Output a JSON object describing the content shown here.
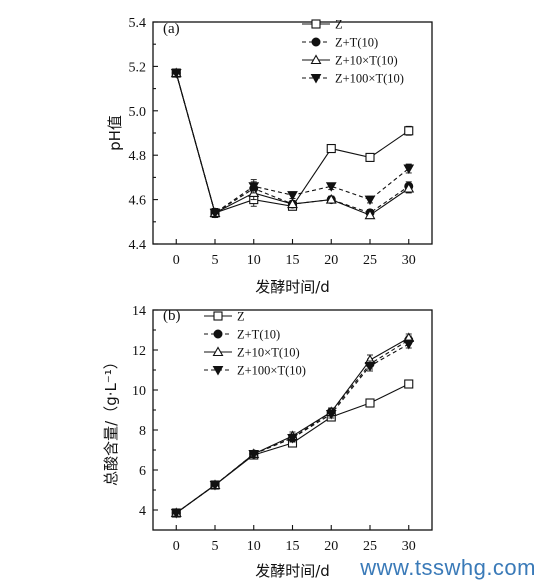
{
  "watermark": "www.tsswhg.com",
  "series_styles": [
    {
      "marker": "square-open",
      "dash": ""
    },
    {
      "marker": "circle-filled",
      "dash": "4,3"
    },
    {
      "marker": "triangle-up-open",
      "dash": ""
    },
    {
      "marker": "triangle-down-filled",
      "dash": "4,3"
    }
  ],
  "chart_data": [
    {
      "type": "line",
      "panel_label": "(a)",
      "title": "",
      "xlabel": "发酵时间/d",
      "ylabel": "pH值",
      "x": [
        0,
        5,
        10,
        15,
        20,
        25,
        30
      ],
      "xticks": [
        "0",
        "5",
        "10",
        "15",
        "20",
        "25",
        "30"
      ],
      "ylim": [
        4.4,
        5.4
      ],
      "yticks": [
        "4.4",
        "4.6",
        "4.8",
        "5.0",
        "5.2",
        "5.4"
      ],
      "legend_position": "top-right",
      "series": [
        {
          "name": "Z",
          "values": [
            5.17,
            4.54,
            4.6,
            4.57,
            4.83,
            4.79,
            4.91
          ],
          "errors": [
            0.015,
            0.02,
            0.03,
            0.015,
            0.015,
            0.015,
            0.02
          ]
        },
        {
          "name": "Z+T(10)",
          "values": [
            5.17,
            4.54,
            4.65,
            4.58,
            4.6,
            4.54,
            4.66
          ],
          "errors": [
            0.015,
            0.02,
            0.03,
            0.015,
            0.015,
            0.015,
            0.02
          ]
        },
        {
          "name": "Z+10×T(10)",
          "values": [
            5.17,
            4.54,
            4.63,
            4.58,
            4.6,
            4.53,
            4.65
          ],
          "errors": [
            0.015,
            0.02,
            0.03,
            0.015,
            0.015,
            0.015,
            0.02
          ]
        },
        {
          "name": "Z+100×T(10)",
          "values": [
            5.17,
            4.54,
            4.66,
            4.62,
            4.66,
            4.6,
            4.74
          ],
          "errors": [
            0.015,
            0.02,
            0.03,
            0.015,
            0.015,
            0.015,
            0.02
          ]
        }
      ]
    },
    {
      "type": "line",
      "panel_label": "(b)",
      "title": "",
      "xlabel": "发酵时间/d",
      "ylabel": "总酸含量/（g·L⁻¹）",
      "x": [
        0,
        5,
        10,
        15,
        20,
        25,
        30
      ],
      "xticks": [
        "0",
        "5",
        "10",
        "15",
        "20",
        "25",
        "30"
      ],
      "ylim": [
        3,
        14
      ],
      "yticks": [
        "4",
        "6",
        "8",
        "10",
        "12",
        "14"
      ],
      "legend_position": "top-left",
      "series": [
        {
          "name": "Z",
          "values": [
            3.85,
            5.25,
            6.75,
            7.35,
            8.65,
            9.35,
            10.3
          ],
          "errors": [
            0.15,
            0.2,
            0.15,
            0.2,
            0.2,
            0.2,
            0.2
          ]
        },
        {
          "name": "Z+T(10)",
          "values": [
            3.85,
            5.25,
            6.8,
            7.6,
            8.9,
            11.3,
            12.5
          ],
          "errors": [
            0.15,
            0.2,
            0.15,
            0.2,
            0.2,
            0.25,
            0.2
          ]
        },
        {
          "name": "Z+10×T(10)",
          "values": [
            3.85,
            5.25,
            6.8,
            7.7,
            8.9,
            11.5,
            12.6
          ],
          "errors": [
            0.15,
            0.2,
            0.15,
            0.2,
            0.2,
            0.25,
            0.2
          ]
        },
        {
          "name": "Z+100×T(10)",
          "values": [
            3.85,
            5.25,
            6.8,
            7.6,
            8.8,
            11.2,
            12.3
          ],
          "errors": [
            0.15,
            0.2,
            0.15,
            0.2,
            0.2,
            0.25,
            0.2
          ]
        }
      ]
    }
  ]
}
